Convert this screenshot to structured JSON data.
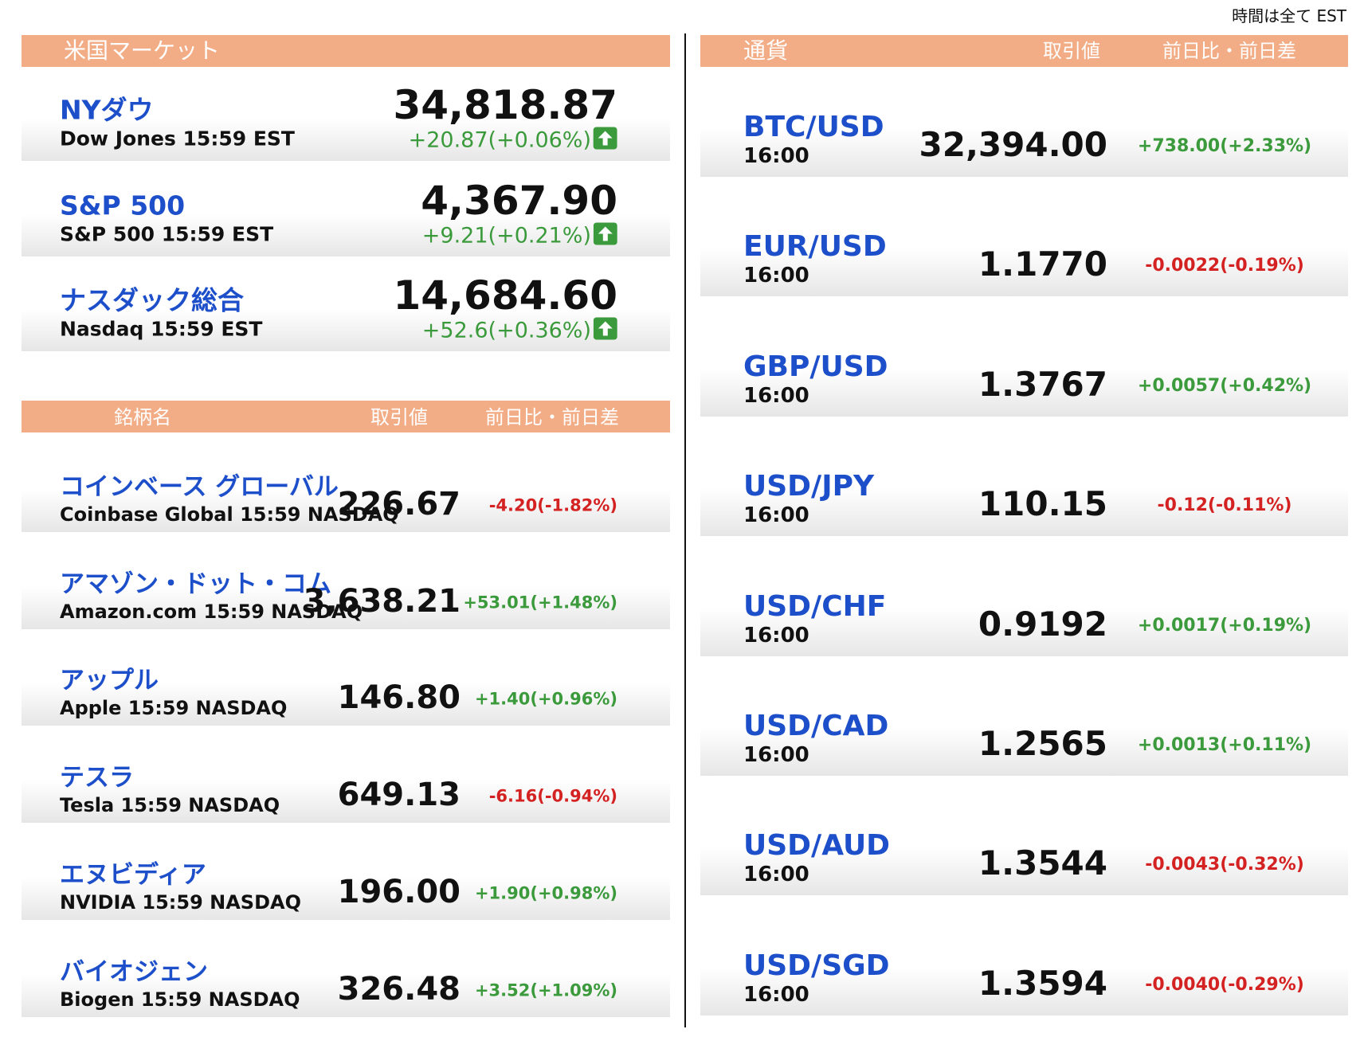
{
  "note": "時間は全て EST",
  "us_market": {
    "title": "米国マーケット",
    "indices": [
      {
        "name": "NYダウ",
        "sub": "Dow Jones 15:59 EST",
        "value": "34,818.87",
        "change": "+20.87(+0.06%)"
      },
      {
        "name": "S&P 500",
        "sub": "S&P 500 15:59 EST",
        "value": "4,367.90",
        "change": "+9.21(+0.21%)"
      },
      {
        "name": "ナスダック総合",
        "sub": "Nasdaq 15:59 EST",
        "value": "14,684.60",
        "change": "+52.6(+0.36%)"
      }
    ]
  },
  "stocks": {
    "headers": [
      "銘柄名",
      "取引値",
      "前日比・前日差"
    ],
    "rows": [
      {
        "name": "コインベース グローバル",
        "sub": "Coinbase Global 15:59  NASDAQ",
        "price": "226.67",
        "change": "-4.20(-1.82%)"
      },
      {
        "name": "アマゾン・ドット・コム",
        "sub": "Amazon.com 15:59  NASDAQ",
        "price": "3,638.21",
        "change": "+53.01(+1.48%)"
      },
      {
        "name": "アップル",
        "sub": "Apple 15:59  NASDAQ",
        "price": "146.80",
        "change": "+1.40(+0.96%)"
      },
      {
        "name": "テスラ",
        "sub": "Tesla 15:59  NASDAQ",
        "price": "649.13",
        "change": "-6.16(-0.94%)"
      },
      {
        "name": "エヌビディア",
        "sub": "NVIDIA 15:59  NASDAQ",
        "price": "196.00",
        "change": "+1.90(+0.98%)"
      },
      {
        "name": "バイオジェン",
        "sub": "Biogen 15:59  NASDAQ",
        "price": "326.48",
        "change": "+3.52(+1.09%)"
      }
    ]
  },
  "currency": {
    "headers": [
      "通貨",
      "取引値",
      "前日比・前日差"
    ],
    "rows": [
      {
        "pair": "BTC/USD",
        "time": "16:00",
        "value": "32,394.00",
        "change": "+738.00(+2.33%)"
      },
      {
        "pair": "EUR/USD",
        "time": "16:00",
        "value": "1.1770",
        "change": "-0.0022(-0.19%)"
      },
      {
        "pair": "GBP/USD",
        "time": "16:00",
        "value": "1.3767",
        "change": "+0.0057(+0.42%)"
      },
      {
        "pair": "USD/JPY",
        "time": "16:00",
        "value": "110.15",
        "change": "-0.12(-0.11%)"
      },
      {
        "pair": "USD/CHF",
        "time": "16:00",
        "value": "0.9192",
        "change": "+0.0017(+0.19%)"
      },
      {
        "pair": "USD/CAD",
        "time": "16:00",
        "value": "1.2565",
        "change": "+0.0013(+0.11%)"
      },
      {
        "pair": "USD/AUD",
        "time": "16:00",
        "value": "1.3544",
        "change": "-0.0043(-0.32%)"
      },
      {
        "pair": "USD/SGD",
        "time": "16:00",
        "value": "1.3594",
        "change": "-0.0040(-0.29%)"
      }
    ]
  }
}
